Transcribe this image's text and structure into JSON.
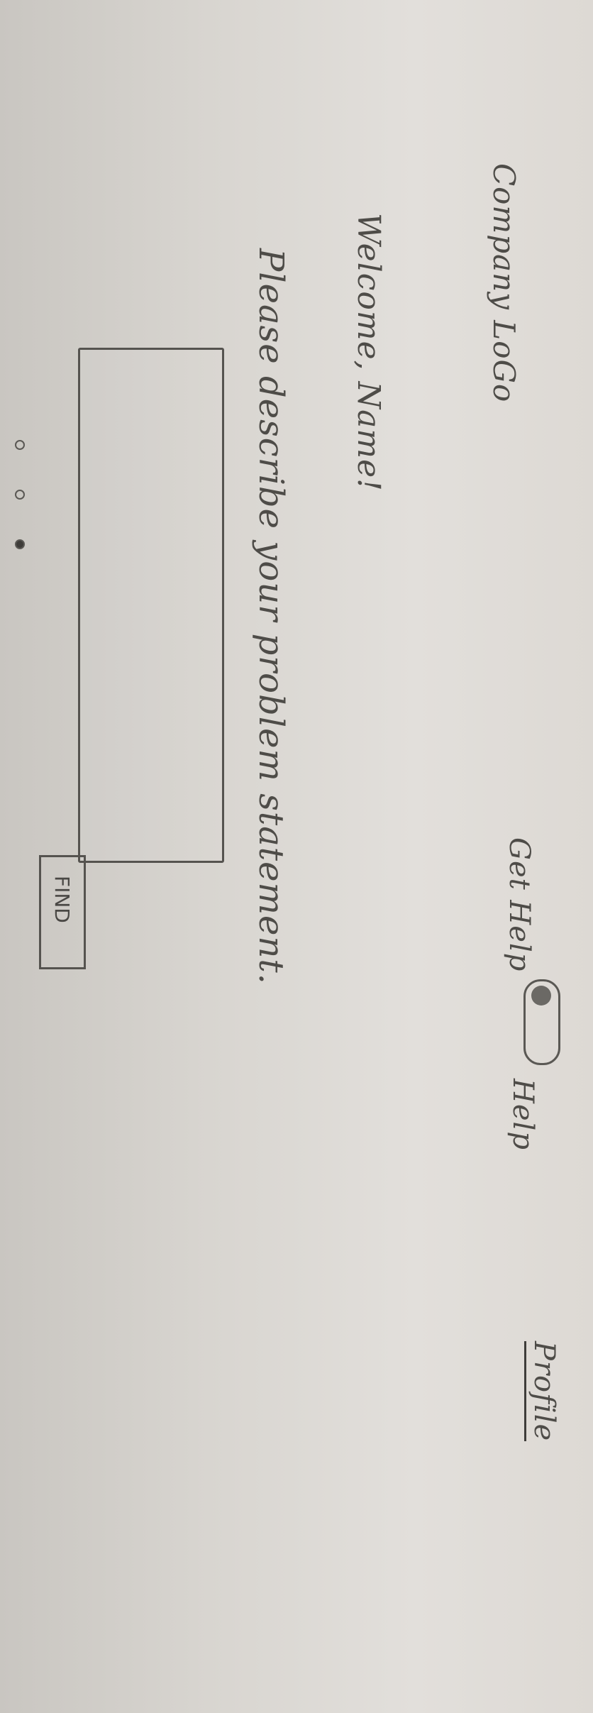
{
  "header": {
    "logo_text": "Company LoGo",
    "get_help_label": "Get Help",
    "help_label": "Help",
    "profile_label": "Profile",
    "help_toggle_state": "on"
  },
  "main": {
    "welcome_text": "Welcome, Name!",
    "prompt_text": "Please describe your problem statement.",
    "problem_input_value": "",
    "find_button_label": "FIND"
  },
  "pagination": {
    "count": 3,
    "active_index": 2
  }
}
